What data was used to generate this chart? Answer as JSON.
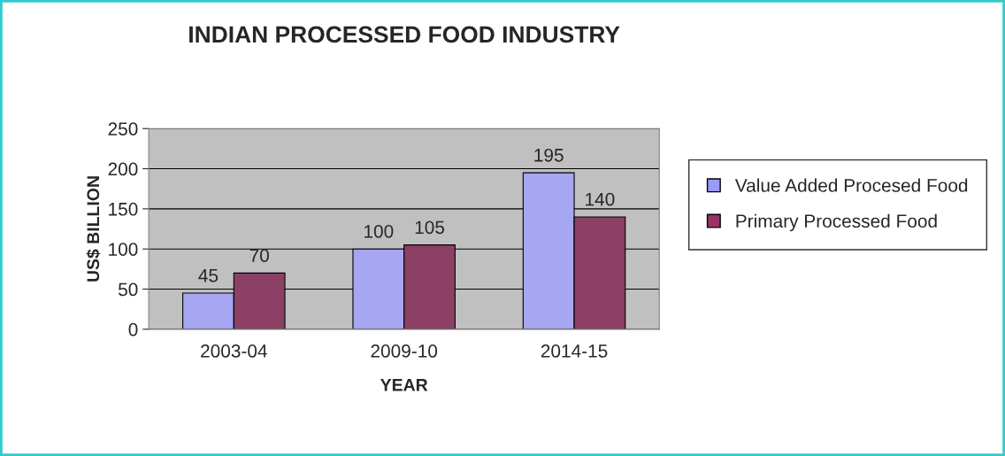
{
  "chart_data": {
    "type": "bar",
    "title": "INDIAN PROCESSED FOOD INDUSTRY",
    "xlabel": "YEAR",
    "ylabel": "US$ BILLION",
    "categories": [
      "2003-04",
      "2009-10",
      "2014-15"
    ],
    "series": [
      {
        "name": "Value Added Procesed Food",
        "color": "#9999ff",
        "values": [
          45,
          100,
          195
        ]
      },
      {
        "name": "Primary Processed Food",
        "color": "#993366",
        "values": [
          70,
          105,
          140
        ]
      }
    ],
    "ylim": [
      0,
      250
    ],
    "yticks": [
      0,
      50,
      100,
      150,
      200,
      250
    ],
    "grid": "y",
    "legend": "right",
    "data_labels": true
  }
}
